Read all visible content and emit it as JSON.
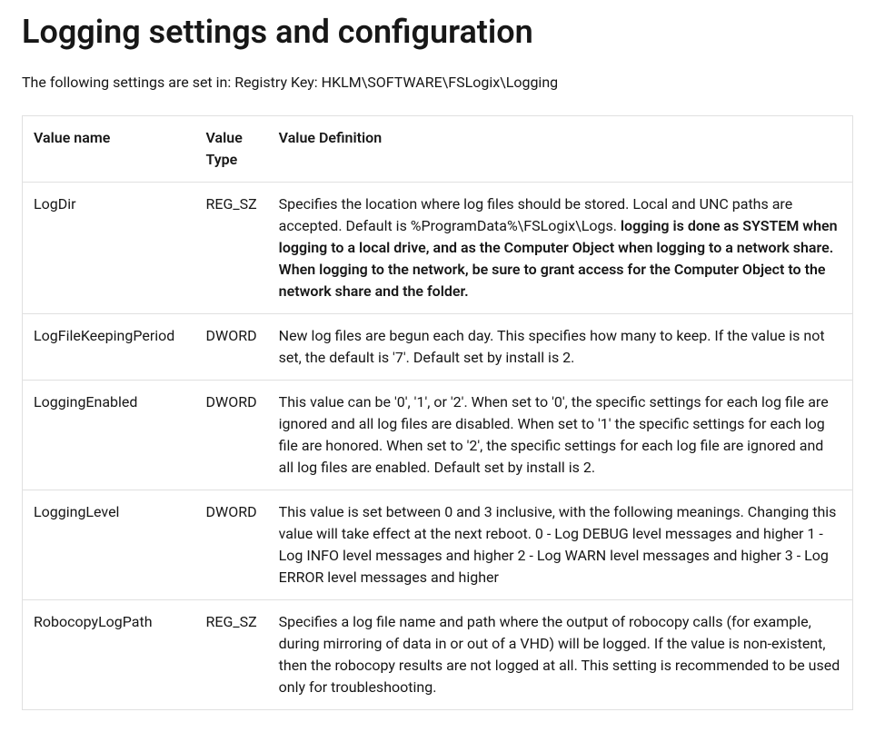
{
  "page": {
    "title": "Logging settings and configuration",
    "intro": "The following settings are set in: Registry Key: HKLM\\SOFTWARE\\FSLogix\\Logging"
  },
  "table": {
    "columns": {
      "name": "Value name",
      "type": "Value Type",
      "definition": "Value Definition"
    },
    "rows": [
      {
        "name": "LogDir",
        "type": "REG_SZ",
        "definition_pre": "Specifies the location where log files should be stored. Local and UNC paths are accepted. Default is %ProgramData%\\FSLogix\\Logs. ",
        "definition_bold": "logging is done as SYSTEM when logging to a local drive, and as the Computer Object when logging to a network share. When logging to the network, be sure to grant access for the Computer Object to the network share and the folder.",
        "definition_post": ""
      },
      {
        "name": "LogFileKeepingPeriod",
        "type": "DWORD",
        "definition_pre": "New log files are begun each day. This specifies how many to keep. If the value is not set, the default is '7'. Default set by install is 2.",
        "definition_bold": "",
        "definition_post": ""
      },
      {
        "name": "LoggingEnabled",
        "type": "DWORD",
        "definition_pre": "This value can be '0', '1', or '2'. When set to '0', the specific settings for each log file are ignored and all log files are disabled. When set to '1' the specific settings for each log file are honored. When set to '2', the specific settings for each log file are ignored and all log files are enabled. Default set by install is 2.",
        "definition_bold": "",
        "definition_post": ""
      },
      {
        "name": "LoggingLevel",
        "type": "DWORD",
        "definition_pre": "This value is set between 0 and 3 inclusive, with the following meanings. Changing this value will take effect at the next reboot. 0 - Log DEBUG level messages and higher 1 - Log INFO level messages and higher 2 - Log WARN level messages and higher 3 - Log ERROR level messages and higher",
        "definition_bold": "",
        "definition_post": ""
      },
      {
        "name": "RobocopyLogPath",
        "type": "REG_SZ",
        "definition_pre": "Specifies a log file name and path where the output of robocopy calls (for example, during mirroring of data in or out of a VHD) will be logged. If the value is non-existent, then the robocopy results are not logged at all. This setting is recommended to be used only for troubleshooting.",
        "definition_bold": "",
        "definition_post": ""
      }
    ]
  },
  "styling": {
    "background_color": "#ffffff",
    "text_color": "#171717",
    "border_color": "#e0e0e0",
    "title_fontsize": 36,
    "body_fontsize": 16,
    "font_family": "Segoe UI"
  }
}
